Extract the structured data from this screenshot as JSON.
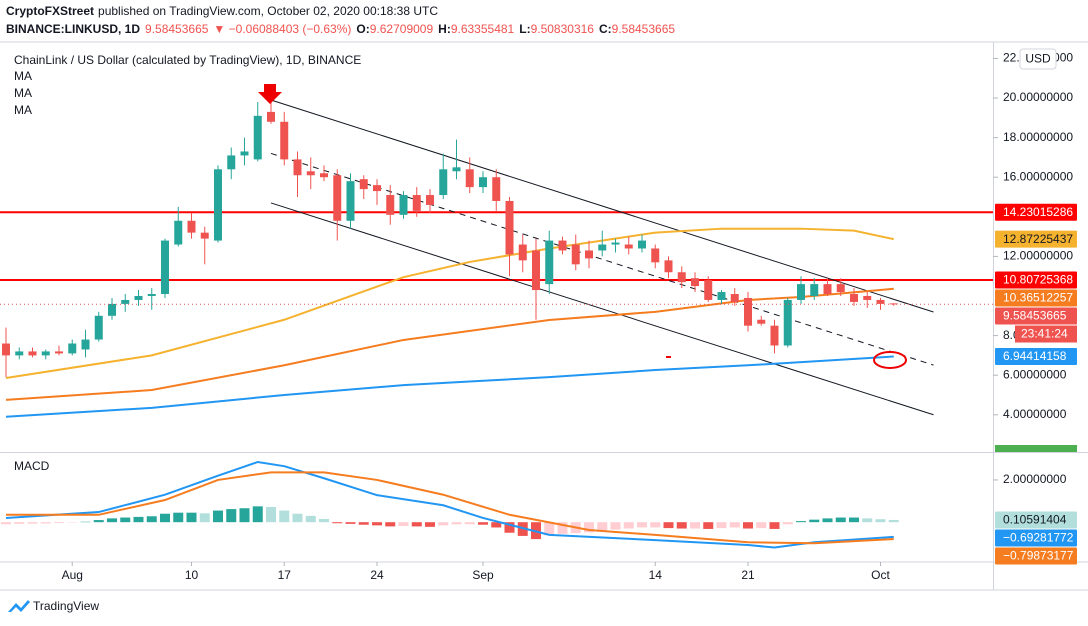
{
  "header": {
    "publisher": "CryptoFXStreet",
    "published": "published on TradingView.com, October 02, 2020 00:18:38 UTC",
    "symbol": "BINANCE:LINKUSD, 1D",
    "price": "9.58453665",
    "change": "▼ −0.06088403 (−0.63%)",
    "ohlc": [
      {
        "label": "O:",
        "value": "9.62709009"
      },
      {
        "label": "H:",
        "value": "9.63355481"
      },
      {
        "label": "L:",
        "value": "9.50830316"
      },
      {
        "label": "C:",
        "value": "9.58453665"
      }
    ]
  },
  "footer": "TradingView",
  "chart_data": [
    {
      "type": "candlestick",
      "title": "ChainLink / US Dollar (calculated by TradingView), 1D, BINANCE",
      "currency": "USD",
      "countdown": "23:41:24",
      "up_color": "#26a69a",
      "down_color": "#ef5350",
      "open": [
        7.6,
        7.0,
        7.2,
        7.0,
        7.2,
        7.1,
        7.3,
        7.8,
        9.0,
        9.6,
        9.8,
        10.0,
        10.1,
        12.6,
        13.8,
        13.2,
        12.8,
        16.4,
        17.1,
        16.9,
        19.3,
        18.8,
        16.9,
        16.3,
        16.2,
        16.1,
        13.8,
        15.9,
        15.6,
        15.1,
        14.1,
        15.1,
        15.1,
        15.1,
        16.3,
        16.4,
        15.5,
        16.0,
        14.8,
        12.6,
        12.3,
        10.6,
        12.8,
        12.6,
        12.3,
        12.3,
        12.6,
        12.6,
        12.4,
        12.4,
        11.8,
        11.2,
        10.9,
        10.8,
        9.8,
        10.1,
        9.9,
        8.8,
        8.5,
        7.5,
        9.8,
        10.0,
        10.6,
        10.6,
        10.1,
        10.0,
        9.8,
        9.62709009
      ],
      "high": [
        8.4,
        7.4,
        7.4,
        7.3,
        7.5,
        7.8,
        8.3,
        9.2,
        9.9,
        10.1,
        10.3,
        10.4,
        12.9,
        14.5,
        14.2,
        13.5,
        16.6,
        17.5,
        18.0,
        19.8,
        20.2,
        19.3,
        17.3,
        17.0,
        16.6,
        16.4,
        16.2,
        16.1,
        15.9,
        15.6,
        15.3,
        15.5,
        15.4,
        17.2,
        17.9,
        17.0,
        16.3,
        16.4,
        15.0,
        13.1,
        12.9,
        13.3,
        13.0,
        13.1,
        12.8,
        13.3,
        12.9,
        13.0,
        13.1,
        12.6,
        12.0,
        11.5,
        11.2,
        11.0,
        10.3,
        10.4,
        10.2,
        9.0,
        8.8,
        9.9,
        11.0,
        10.9,
        10.9,
        10.9,
        10.4,
        10.2,
        9.9,
        9.63355481
      ],
      "low": [
        5.9,
        6.8,
        6.9,
        6.8,
        7.0,
        7.0,
        6.9,
        7.7,
        8.8,
        9.2,
        9.5,
        9.3,
        9.9,
        12.5,
        12.9,
        11.6,
        12.7,
        15.9,
        16.6,
        16.8,
        18.7,
        16.6,
        15.0,
        15.4,
        15.8,
        12.8,
        13.4,
        14.9,
        14.6,
        13.6,
        13.9,
        14.0,
        14.2,
        14.9,
        15.9,
        15.2,
        15.2,
        14.3,
        11.0,
        11.2,
        8.8,
        10.1,
        12.1,
        11.3,
        11.4,
        12.0,
        12.2,
        12.1,
        12.2,
        11.4,
        10.9,
        10.4,
        10.2,
        9.7,
        9.6,
        9.5,
        8.2,
        8.5,
        7.1,
        7.4,
        9.6,
        9.8,
        10.0,
        10.0,
        9.5,
        9.4,
        9.3,
        9.50830316
      ],
      "close": [
        7.0,
        7.2,
        7.0,
        7.2,
        7.1,
        7.6,
        7.8,
        9.0,
        9.6,
        9.8,
        10.0,
        10.1,
        12.8,
        13.8,
        13.2,
        12.9,
        16.4,
        17.1,
        17.3,
        19.1,
        18.8,
        16.9,
        16.1,
        16.1,
        16.0,
        13.8,
        15.8,
        15.4,
        15.3,
        14.1,
        15.1,
        14.3,
        14.6,
        16.4,
        16.5,
        15.5,
        16.0,
        14.8,
        12.1,
        11.8,
        10.3,
        12.8,
        12.3,
        11.6,
        11.9,
        12.6,
        12.7,
        12.4,
        12.8,
        11.7,
        11.2,
        10.7,
        10.5,
        9.8,
        10.2,
        9.7,
        8.5,
        8.6,
        7.5,
        9.8,
        10.6,
        10.6,
        10.1,
        10.2,
        9.7,
        9.8,
        9.6,
        9.58453665
      ],
      "xticks": [
        {
          "value": 5,
          "label": "Aug"
        },
        {
          "value": 14,
          "label": "10"
        },
        {
          "value": 21,
          "label": "17"
        },
        {
          "value": 28,
          "label": "24"
        },
        {
          "value": 36,
          "label": "Sep"
        },
        {
          "value": 49,
          "label": "14"
        },
        {
          "value": 56,
          "label": "21"
        },
        {
          "value": 66,
          "label": "Oct"
        }
      ],
      "ylim": [
        2.12,
        22.83
      ],
      "yticks": [
        {
          "value": 22,
          "label": "22.00000000"
        },
        {
          "value": 20,
          "label": "20.00000000"
        },
        {
          "value": 18,
          "label": "18.00000000"
        },
        {
          "value": 16,
          "label": "16.00000000"
        },
        {
          "value": 12,
          "label": "12.00000000"
        },
        {
          "value": 8,
          "label": "8.00000000"
        },
        {
          "value": 6,
          "label": "6.00000000"
        },
        {
          "value": 4,
          "label": "4.00000000"
        }
      ],
      "series": [
        {
          "name": "MA",
          "color": "#f5b22e",
          "x": [
            0,
            11,
            21,
            30,
            35,
            41,
            49,
            54,
            60,
            64,
            67
          ],
          "values": [
            5.86,
            7.0,
            8.8,
            10.95,
            11.72,
            12.4,
            13.2,
            13.4,
            13.4,
            13.3,
            12.87225437
          ]
        },
        {
          "name": "MA",
          "color": "#f57c1f",
          "x": [
            0,
            11,
            21,
            30,
            41,
            49,
            56,
            60,
            67
          ],
          "values": [
            4.75,
            5.25,
            6.5,
            7.78,
            8.79,
            9.2,
            9.8,
            9.95,
            10.36512257
          ]
        },
        {
          "name": "MA",
          "color": "#2196f3",
          "x": [
            0,
            11,
            21,
            30,
            41,
            49,
            56,
            67
          ],
          "values": [
            3.9,
            4.35,
            5.0,
            5.5,
            5.9,
            6.26,
            6.5,
            6.94414158
          ]
        }
      ],
      "hlines": [
        {
          "value": 14.23015286,
          "color": "#ff0000"
        },
        {
          "value": 10.80725368,
          "color": "#ff0000"
        }
      ],
      "trendlines": [
        {
          "x": [
            20,
            70
          ],
          "values": [
            19.9,
            9.19
          ],
          "dashed": false
        },
        {
          "x": [
            20,
            70
          ],
          "values": [
            17.2,
            6.51
          ],
          "dashed": true
        },
        {
          "x": [
            20,
            70
          ],
          "values": [
            14.7,
            4.0
          ],
          "dashed": false
        }
      ]
    },
    {
      "type": "macd",
      "title": "MACD",
      "histogram": [
        -0.1,
        -0.08,
        -0.07,
        -0.06,
        -0.04,
        -0.02,
        0.02,
        0.1,
        0.18,
        0.22,
        0.25,
        0.28,
        0.4,
        0.45,
        0.45,
        0.42,
        0.55,
        0.62,
        0.66,
        0.75,
        0.72,
        0.55,
        0.4,
        0.3,
        0.15,
        -0.05,
        -0.08,
        -0.12,
        -0.15,
        -0.2,
        -0.18,
        -0.2,
        -0.22,
        -0.15,
        -0.1,
        -0.1,
        -0.12,
        -0.25,
        -0.5,
        -0.65,
        -0.8,
        -0.62,
        -0.55,
        -0.52,
        -0.48,
        -0.4,
        -0.35,
        -0.3,
        -0.25,
        -0.25,
        -0.28,
        -0.3,
        -0.3,
        -0.32,
        -0.28,
        -0.25,
        -0.3,
        -0.28,
        -0.32,
        -0.1,
        0.05,
        0.12,
        0.18,
        0.22,
        0.22,
        0.18,
        0.14,
        0.10591404
      ],
      "ylim": [
        -1.79,
        3.18
      ],
      "yticks": [
        {
          "value": 2,
          "label": "2.00000000"
        }
      ],
      "series": [
        {
          "color": "#2196f3",
          "x": [
            0,
            7,
            12,
            16,
            19,
            21,
            24,
            28,
            33,
            36,
            41,
            49,
            56,
            58,
            61,
            67
          ],
          "values": [
            0.2,
            0.48,
            1.3,
            2.2,
            2.85,
            2.65,
            2.08,
            1.28,
            0.8,
            0.2,
            -0.6,
            -0.85,
            -1.08,
            -1.2,
            -0.95,
            -0.69281772
          ],
          "last_label": "−0.69281772"
        },
        {
          "color": "#f57c1f",
          "x": [
            0,
            7,
            12,
            16,
            20,
            24,
            28,
            33,
            38,
            44,
            49,
            56,
            61,
            67
          ],
          "values": [
            0.35,
            0.35,
            1.05,
            2.0,
            2.36,
            2.36,
            2.0,
            1.3,
            0.35,
            -0.37,
            -0.6,
            -0.95,
            -1.0,
            -0.79873177
          ],
          "last_label": "−0.79873177"
        }
      ]
    }
  ]
}
